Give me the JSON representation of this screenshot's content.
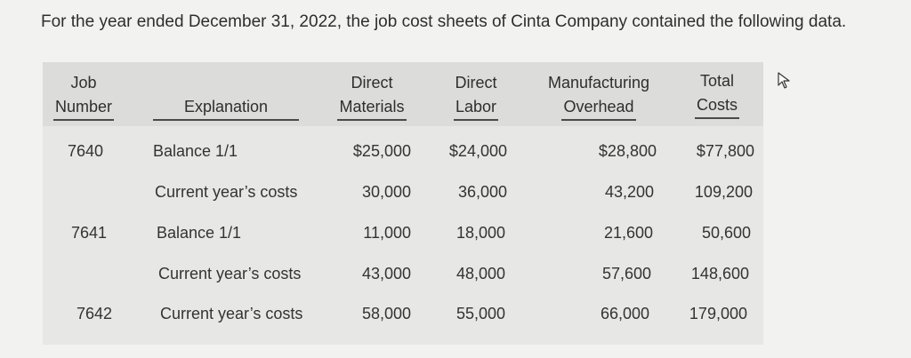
{
  "intro": "For the year ended December 31, 2022, the job cost sheets of Cinta Company contained the following data.",
  "headers": {
    "job_number": [
      "Job",
      "Number"
    ],
    "explanation": "Explanation",
    "direct_materials": [
      "Direct",
      "Materials"
    ],
    "direct_labor": [
      "Direct",
      "Labor"
    ],
    "manufacturing_overhead": [
      "Manufacturing",
      "Overhead"
    ],
    "total_costs": [
      "Total",
      "Costs"
    ]
  },
  "rows": [
    {
      "job": "7640",
      "explanation": "Balance 1/1",
      "dm": "$25,000",
      "dl": "$24,000",
      "moh": "$28,800",
      "total": "$77,800"
    },
    {
      "job": "",
      "explanation": "Current year’s costs",
      "dm": "30,000",
      "dl": "36,000",
      "moh": "43,200",
      "total": "109,200"
    },
    {
      "job": "7641",
      "explanation": "Balance 1/1",
      "dm": "11,000",
      "dl": "18,000",
      "moh": "21,600",
      "total": "50,600"
    },
    {
      "job": "",
      "explanation": "Current year’s costs",
      "dm": "43,000",
      "dl": "48,000",
      "moh": "57,600",
      "total": "148,600"
    },
    {
      "job": "7642",
      "explanation": "Current year’s costs",
      "dm": "58,000",
      "dl": "55,000",
      "moh": "66,000",
      "total": "179,000"
    }
  ]
}
